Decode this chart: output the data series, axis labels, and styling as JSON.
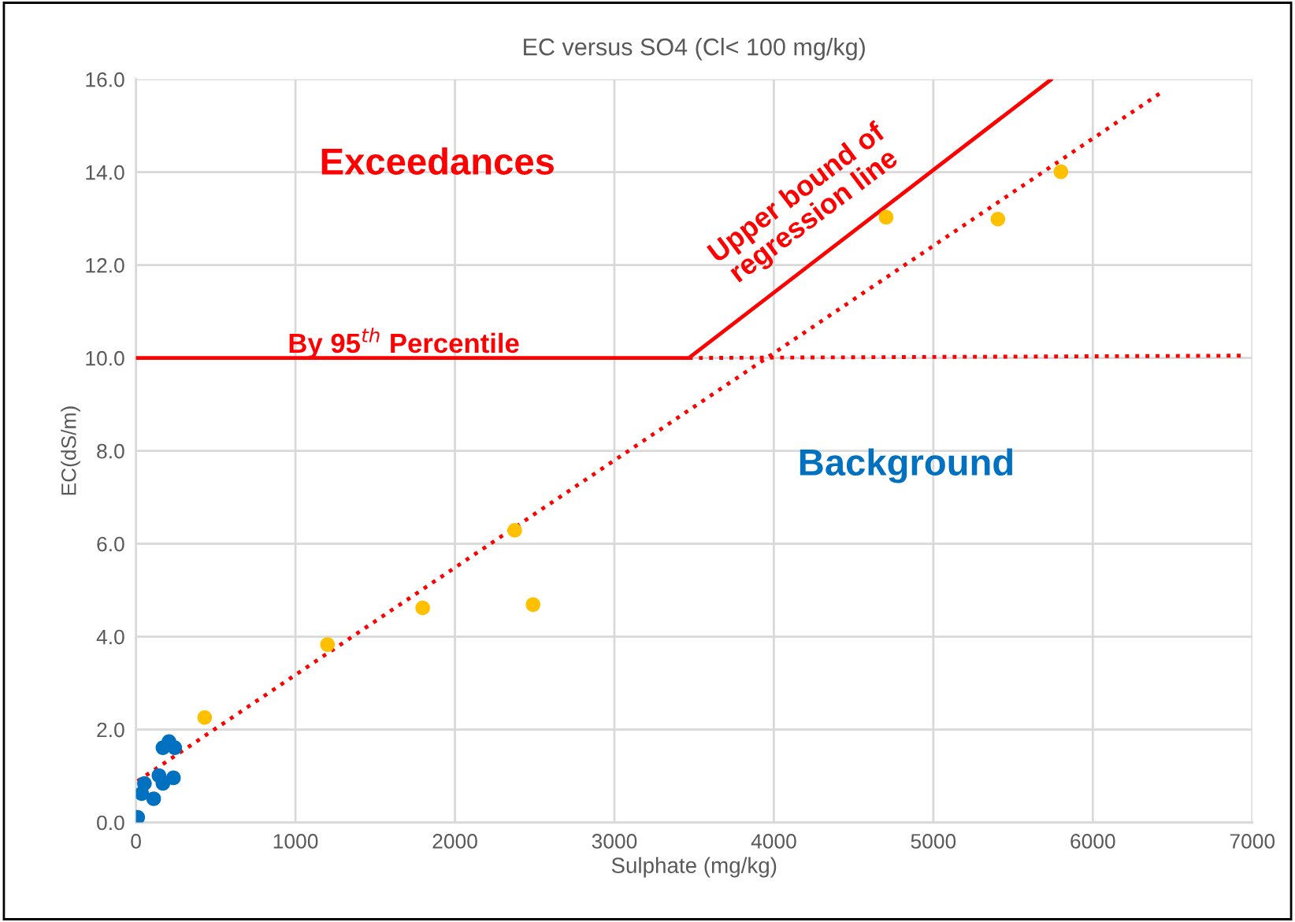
{
  "chart_data": {
    "type": "scatter",
    "title": "EC versus SO4 (Cl< 100 mg/kg)",
    "xlabel": "Sulphate (mg/kg)",
    "ylabel": "EC(dS/m)",
    "series": [
      {
        "marker": "circle",
        "color": "#0070c0",
        "x": [
          11,
          36,
          53,
          111,
          144,
          169,
          235,
          169,
          207,
          243
        ],
        "values": [
          0.11,
          0.62,
          0.84,
          0.51,
          1.01,
          0.84,
          0.96,
          1.61,
          1.74,
          1.61
        ]
      },
      {
        "marker": "circle",
        "color": "#ffc000",
        "x": [
          431,
          1201,
          1798,
          2375,
          2490,
          4704,
          5405,
          5800
        ],
        "values": [
          2.26,
          3.83,
          4.62,
          6.29,
          4.69,
          13.03,
          12.99,
          14.01
        ]
      },
      {
        "type": "line",
        "color": "#ff0000",
        "line_style": "solid",
        "x": [
          0,
          3467,
          5740
        ],
        "values": [
          10.0,
          10.0,
          16.0
        ]
      },
      {
        "type": "line",
        "color": "#ff0000",
        "line_style": "dotted",
        "x": [
          3467,
          6960
        ],
        "values": [
          10.0,
          10.05
        ]
      },
      {
        "type": "line",
        "color": "#ff0000",
        "line_style": "dotted",
        "x": [
          10,
          6440
        ],
        "values": [
          0.89,
          15.74
        ]
      }
    ],
    "annotations": [
      "Exceedances",
      "Background",
      "Upper bound of\nregression line",
      "By 95$^{th}$ Percentile"
    ],
    "xlim": [
      0,
      7000
    ],
    "xticks": [
      0,
      1000,
      2000,
      3000,
      4000,
      5000,
      6000,
      7000
    ],
    "ylim": [
      0,
      16
    ],
    "yticks": [
      {
        "value": 0,
        "label": "0.0"
      },
      {
        "value": 2,
        "label": "2.0"
      },
      {
        "value": 4,
        "label": "4.0"
      },
      {
        "value": 6,
        "label": "6.0"
      },
      {
        "value": 8,
        "label": "8.0"
      },
      {
        "value": 10,
        "label": "10.0"
      },
      {
        "value": 12,
        "label": "12.0"
      },
      {
        "value": 14,
        "label": "14.0"
      },
      {
        "value": 16,
        "label": "16.0"
      }
    ],
    "grid": true,
    "legend": false
  }
}
